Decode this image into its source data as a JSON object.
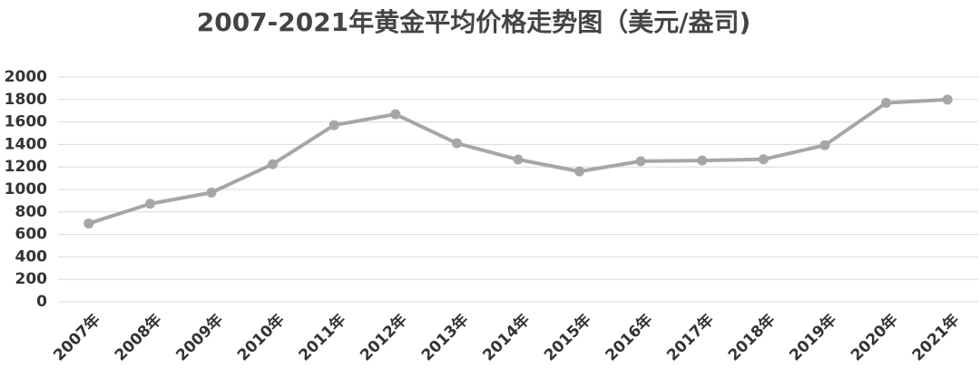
{
  "chart_data": {
    "type": "line",
    "title": "2007-2021年黄金平均价格走势图（美元/盎司)",
    "categories": [
      "2007年",
      "2008年",
      "2009年",
      "2010年",
      "2011年",
      "2012年",
      "2013年",
      "2014年",
      "2015年",
      "2016年",
      "2017年",
      "2018年",
      "2019年",
      "2020年",
      "2021年"
    ],
    "values": [
      697,
      872,
      972,
      1225,
      1572,
      1669,
      1411,
      1266,
      1160,
      1251,
      1257,
      1268,
      1393,
      1770,
      1799
    ],
    "color": "#a6a6a6",
    "ylim": [
      0,
      2000
    ],
    "yticks": [
      0,
      200,
      400,
      600,
      800,
      1000,
      1200,
      1400,
      1600,
      1800,
      2000
    ],
    "grid": true
  }
}
